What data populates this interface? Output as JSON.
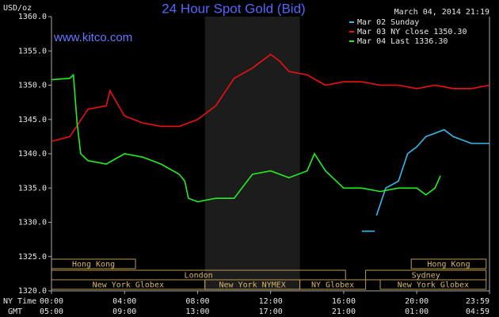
{
  "chart_data": {
    "type": "line",
    "title": "24 Hour Spot Gold (Bid)",
    "timestamp": "March 04, 2014 21:19",
    "source": "www.kitco.com",
    "y_label": "USD/oz",
    "x_label": "NY Time",
    "x2_label": "GMT",
    "xlim": [
      0,
      23.983
    ],
    "ylim": [
      1320,
      1360
    ],
    "xticks": [
      {
        "value": 0,
        "label": "00:00"
      },
      {
        "value": 4,
        "label": "04:00"
      },
      {
        "value": 8,
        "label": "08:00"
      },
      {
        "value": 12,
        "label": "12:00"
      },
      {
        "value": 16,
        "label": "16:00"
      },
      {
        "value": 20,
        "label": "20:00"
      },
      {
        "value": 23.983,
        "label": "23:59"
      }
    ],
    "x2ticks": [
      {
        "value": 0,
        "label": "05:00"
      },
      {
        "value": 4,
        "label": "09:00"
      },
      {
        "value": 8,
        "label": "13:00"
      },
      {
        "value": 12,
        "label": "17:00"
      },
      {
        "value": 16,
        "label": "21:00"
      },
      {
        "value": 20,
        "label": "01:00"
      },
      {
        "value": 23.983,
        "label": "04:59"
      }
    ],
    "yticks": [
      {
        "value": 1320,
        "label": "1320.0"
      },
      {
        "value": 1325,
        "label": "1325.0"
      },
      {
        "value": 1330,
        "label": "1330.0"
      },
      {
        "value": 1335,
        "label": "1335.0"
      },
      {
        "value": 1340,
        "label": "1340.0"
      },
      {
        "value": 1345,
        "label": "1345.0"
      },
      {
        "value": 1350,
        "label": "1350.0"
      },
      {
        "value": 1355,
        "label": "1355.0"
      },
      {
        "value": 1360,
        "label": "1360.0"
      }
    ],
    "sessions": [
      [
        {
          "name": "Hong Kong",
          "start": 0,
          "end": 4.6
        },
        {
          "name": "Hong Kong",
          "start": 19.7,
          "end": 23.8
        }
      ],
      [
        {
          "name": "London",
          "start": 0,
          "end": 16.1
        },
        {
          "name": "Sydney",
          "start": 17.2,
          "end": 23.8
        }
      ],
      [
        {
          "name": "New York Globex",
          "start": 0,
          "end": 8.4
        },
        {
          "name": "New York NYMEX",
          "start": 8.4,
          "end": 13.6
        },
        {
          "name": "NY Globex",
          "start": 13.6,
          "end": 17.2
        },
        {
          "name": "New York Globex",
          "start": 18.0,
          "end": 23.8
        }
      ]
    ],
    "series": [
      {
        "name": "Mar 02 Sunday",
        "color": "#33bbee",
        "x": [
          17.0,
          17.7,
          17.75,
          17.8,
          18.3,
          19.0,
          19.5,
          20.0,
          20.5,
          21.0,
          21.5,
          22.0,
          23.0,
          23.983
        ],
        "values": [
          1328.7,
          1328.7,
          null,
          1331,
          1335,
          1336,
          1340,
          1341,
          1342.5,
          1343,
          1343.5,
          1342.5,
          1341.5,
          1341.5
        ]
      },
      {
        "name": "Mar 03 NY close 1350.30",
        "color": "#ee1111",
        "x": [
          0,
          1,
          2,
          3,
          3.2,
          4,
          5,
          6,
          7,
          8,
          9,
          10,
          11,
          12,
          12.5,
          13,
          14,
          15,
          16,
          17,
          18,
          19,
          20,
          21,
          22,
          23,
          23.983
        ],
        "values": [
          1341.8,
          1342.5,
          1346.5,
          1347,
          1349.2,
          1345.5,
          1344.5,
          1344,
          1344,
          1345,
          1347,
          1351,
          1352.5,
          1354.5,
          1353.5,
          1352,
          1351.5,
          1350,
          1350.5,
          1350.5,
          1350,
          1350,
          1349.5,
          1350,
          1349.5,
          1349.5,
          1350
        ]
      },
      {
        "name": "Mar 04 Last 1336.30",
        "color": "#22ee22",
        "x": [
          0,
          1,
          1.2,
          1.4,
          1.6,
          2,
          3,
          4,
          5,
          6,
          7,
          7.3,
          7.5,
          8,
          9,
          10,
          11,
          12,
          13,
          14,
          14.4,
          15,
          16,
          17,
          18,
          19,
          20,
          20.5,
          21,
          21.3
        ],
        "values": [
          1350.8,
          1351,
          1351.5,
          1344.5,
          1340,
          1339,
          1338.5,
          1340,
          1339.5,
          1338.5,
          1337,
          1336,
          1333.5,
          1333,
          1333.5,
          1333.5,
          1337,
          1337.5,
          1336.5,
          1337.5,
          1340,
          1337.5,
          1335,
          1335,
          1334.5,
          1335,
          1335,
          1334,
          1335,
          1336.8
        ]
      }
    ]
  }
}
